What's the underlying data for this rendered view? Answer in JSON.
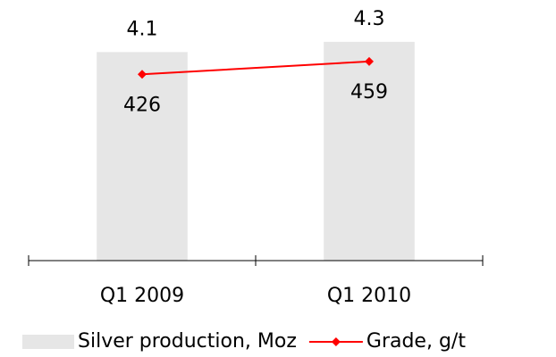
{
  "chart_data": {
    "type": "bar",
    "categories": [
      "Q1 2009",
      "Q1 2010"
    ],
    "series": [
      {
        "name": "Silver production, Moz",
        "type": "bar",
        "color": "#e6e6e6",
        "values": [
          4.1,
          4.3
        ]
      },
      {
        "name": "Grade, g/t",
        "type": "line",
        "axis": "y2",
        "color": "#ff0000",
        "values": [
          426,
          459
        ]
      }
    ],
    "ylim": [
      0,
      5
    ],
    "y2lim": [
      -50,
      600
    ],
    "legend": "bottom"
  }
}
